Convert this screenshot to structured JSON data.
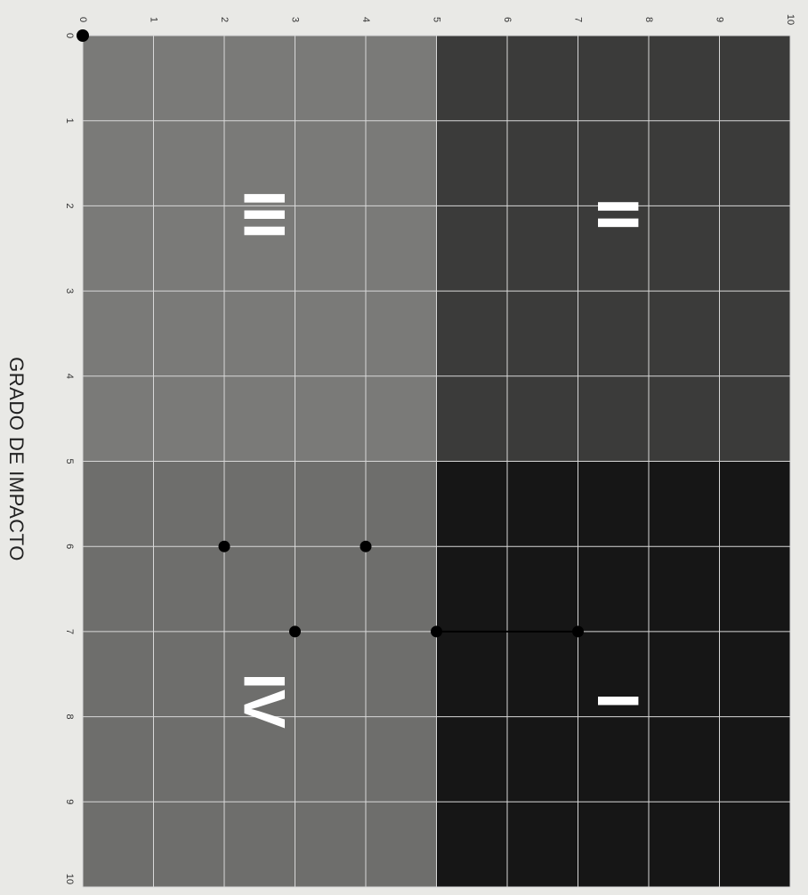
{
  "chart_data": {
    "type": "scatter",
    "title": "",
    "xlabel": "GRADO DE IMPACTO",
    "ylabel": "",
    "xlim": [
      0,
      10
    ],
    "ylim": [
      0,
      10
    ],
    "x_ticks": [
      "0",
      "1",
      "2",
      "3",
      "4",
      "5",
      "6",
      "7",
      "8",
      "9",
      "10"
    ],
    "y_ticks": [
      "0",
      "1",
      "2",
      "3",
      "4",
      "5",
      "6",
      "7",
      "8",
      "9",
      "10"
    ],
    "grid": true,
    "quadrants": [
      {
        "label": "I",
        "x_range": [
          5,
          10
        ],
        "y_range": [
          5,
          10
        ],
        "color": "#161616"
      },
      {
        "label": "II",
        "x_range": [
          0,
          5
        ],
        "y_range": [
          5,
          10
        ],
        "color": "#3b3b3a"
      },
      {
        "label": "III",
        "x_range": [
          0,
          5
        ],
        "y_range": [
          0,
          5
        ],
        "color": "#7a7a78"
      },
      {
        "label": "IV",
        "x_range": [
          5,
          10
        ],
        "y_range": [
          0,
          5
        ],
        "color": "#6e6e6c"
      }
    ],
    "points": [
      {
        "x": 0,
        "y": 0
      },
      {
        "x": 6,
        "y": 2
      },
      {
        "x": 6,
        "y": 4
      },
      {
        "x": 7,
        "y": 3
      },
      {
        "x": 7,
        "y": 5
      },
      {
        "x": 7,
        "y": 7
      }
    ],
    "connectors": [
      {
        "from": [
          7,
          5
        ],
        "to": [
          7,
          7
        ]
      }
    ]
  }
}
